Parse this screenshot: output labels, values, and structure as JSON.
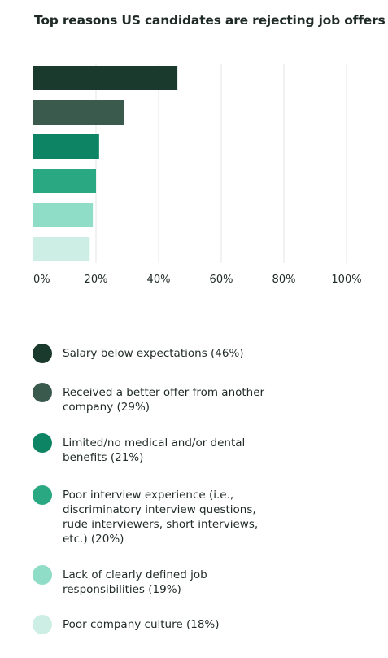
{
  "title": "Top reasons US candidates are rejecting job offers",
  "chart_data": {
    "type": "bar",
    "orientation": "horizontal",
    "title": "Top reasons US candidates are rejecting job offers",
    "xlabel": "",
    "ylabel": "",
    "xlim": [
      0,
      100
    ],
    "ticks": [
      "0%",
      "20%",
      "40%",
      "60%",
      "80%",
      "100%"
    ],
    "tick_values": [
      0,
      20,
      40,
      60,
      80,
      100
    ],
    "grid": true,
    "categories": [
      "Salary below expectations (46%)",
      "Received a better offer from another company (29%)",
      "Limited/no medical and/or dental benefits (21%)",
      "Poor interview experience (i.e., discriminatory interview questions, rude interviewers, short interviews, etc.) (20%)",
      "Lack of clearly defined job responsibilities (19%)",
      "Poor company culture (18%)"
    ],
    "values": [
      46,
      29,
      21,
      20,
      19,
      18
    ],
    "colors": [
      "#1b3a2e",
      "#3a5a4e",
      "#0d8463",
      "#2aa882",
      "#8fdcc7",
      "#cdeee4"
    ],
    "legend_position": "bottom"
  }
}
